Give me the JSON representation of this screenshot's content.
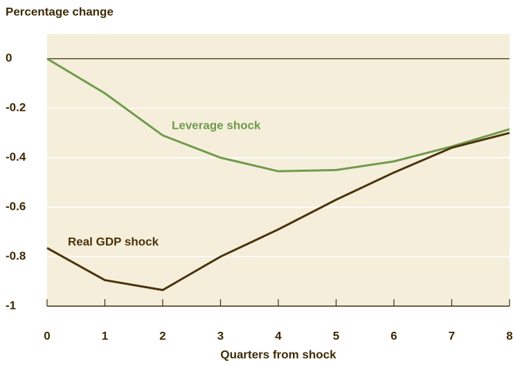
{
  "chart_data": {
    "type": "line",
    "y_axis_label": "Percentage change",
    "x_axis_label": "Quarters from shock",
    "x": [
      0,
      1,
      2,
      3,
      4,
      5,
      6,
      7,
      8
    ],
    "series": [
      {
        "name": "Leverage shock",
        "color": "#6f9a4b",
        "values": [
          0,
          -0.14,
          -0.31,
          -0.4,
          -0.455,
          -0.45,
          -0.415,
          -0.355,
          -0.285
        ]
      },
      {
        "name": "Real GDP shock",
        "color": "#4a3208",
        "values": [
          -0.765,
          -0.895,
          -0.935,
          -0.8,
          -0.69,
          -0.57,
          -0.46,
          -0.36,
          -0.3
        ]
      }
    ],
    "xlim": [
      0,
      8
    ],
    "xticks": [
      0,
      1,
      2,
      3,
      4,
      5,
      6,
      7,
      8
    ],
    "ylim": [
      -1,
      0.1
    ],
    "yticks": [
      0,
      -0.2,
      -0.4,
      -0.6,
      -0.8,
      -1
    ],
    "grid": true
  }
}
